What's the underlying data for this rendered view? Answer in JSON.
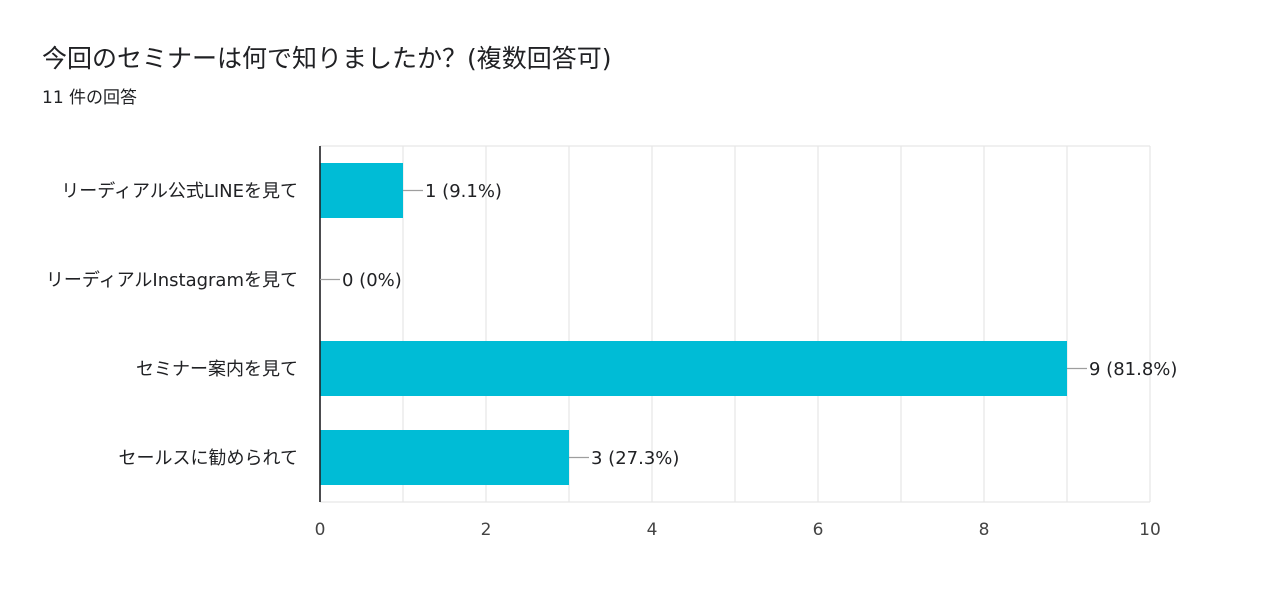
{
  "question": {
    "title": "今回のセミナーは何で知りましたか？(複数回答可)",
    "response_count": "11 件の回答"
  },
  "colors": {
    "bar": "#00bcd6",
    "grid": "#e6e6e6",
    "axis": "#202124",
    "leader": "#9e9e9e"
  },
  "chart_data": {
    "type": "bar",
    "orientation": "horizontal",
    "categories": [
      "リーディアル公式LINEを見て",
      "リーディアルInstagramを見て",
      "セミナー案内を見て",
      "セールスに勧められて"
    ],
    "values": [
      1,
      0,
      9,
      3
    ],
    "data_labels": [
      "1 (9.1%)",
      "0 (0%)",
      "9 (81.8%)",
      "3 (27.3%)"
    ],
    "xlim": [
      0,
      10
    ],
    "xticks": [
      0,
      2,
      4,
      6,
      8,
      10
    ],
    "grid": true,
    "legend": "none"
  }
}
